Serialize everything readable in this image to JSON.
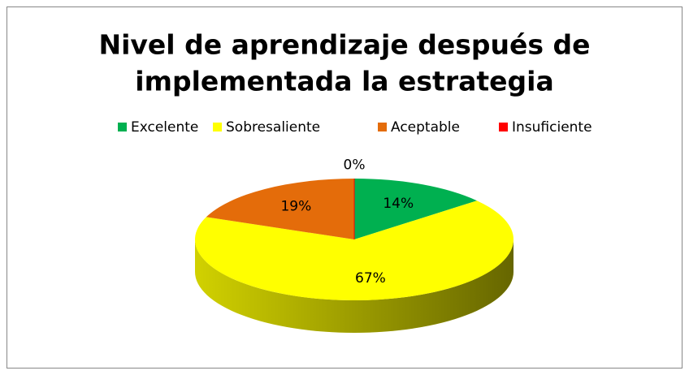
{
  "chart_data": {
    "type": "pie",
    "title": [
      "Nivel de aprendizaje después de",
      "implementada la estrategia"
    ],
    "categories": [
      "Excelente",
      "Sobresaliente",
      "Aceptable",
      "Insuficiente"
    ],
    "values": [
      14,
      67,
      19,
      0
    ],
    "value_labels": [
      "14%",
      "67%",
      "19%",
      "0%"
    ],
    "colors": [
      "#00b050",
      "#ffff00",
      "#e46c0a",
      "#ff0000"
    ],
    "legend": "top"
  }
}
